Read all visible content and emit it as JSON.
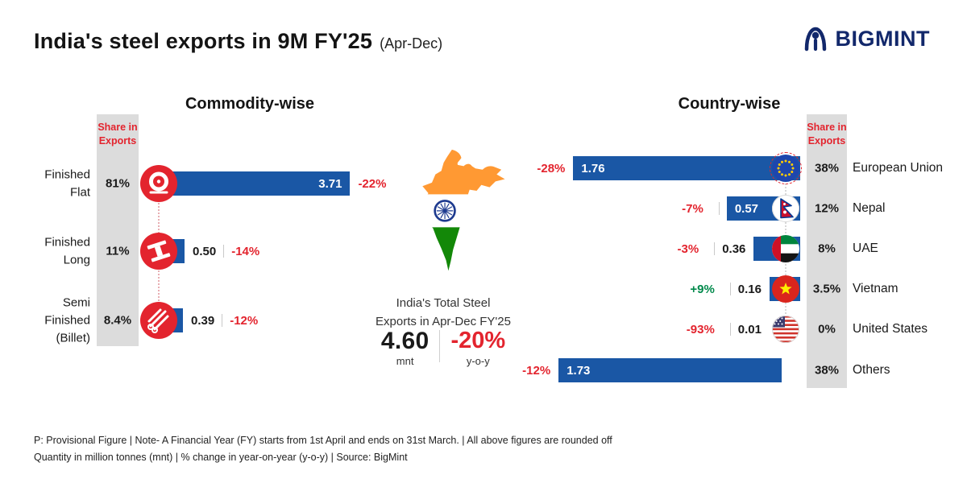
{
  "header": {
    "title": "India's steel exports in 9M FY'25",
    "subtitle": "(Apr-Dec)",
    "brand": "BIGMINT"
  },
  "colors": {
    "bar_blue": "#1a57a5",
    "accent_red": "#e3242e",
    "positive_green": "#00894b",
    "strip_gray": "#dcdcdc",
    "brand_navy": "#12286b"
  },
  "commodity": {
    "section_title": "Commodity-wise",
    "share_header": "Share in\nExports",
    "rows": [
      {
        "label": "Finished\nFlat",
        "share": "81%",
        "value": "3.71",
        "value_num": 3.71,
        "change": "-22%",
        "icon": "coil-icon"
      },
      {
        "label": "Finished\nLong",
        "share": "11%",
        "value": "0.50",
        "value_num": 0.5,
        "change": "-14%",
        "icon": "long-steel-icon"
      },
      {
        "label": "Semi\nFinished\n(Billet)",
        "share": "8.4%",
        "value": "0.39",
        "value_num": 0.39,
        "change": "-12%",
        "icon": "billet-icon"
      }
    ]
  },
  "center": {
    "caption": "India's Total Steel\nExports in Apr-Dec FY'25",
    "total_value": "4.60",
    "total_unit": "mnt",
    "total_change": "-20%",
    "change_unit": "y-o-y"
  },
  "country": {
    "section_title": "Country-wise",
    "share_header": "Share in\nExports",
    "rows": [
      {
        "name": "European Union",
        "share": "38%",
        "value": "1.76",
        "value_num": 1.76,
        "change": "-28%",
        "flag": "eu-flag"
      },
      {
        "name": "Nepal",
        "share": "12%",
        "value": "0.57",
        "value_num": 0.57,
        "change": "-7%",
        "flag": "nepal-flag"
      },
      {
        "name": "UAE",
        "share": "8%",
        "value": "0.36",
        "value_num": 0.36,
        "change": "-3%",
        "flag": "uae-flag"
      },
      {
        "name": "Vietnam",
        "share": "3.5%",
        "value": "0.16",
        "value_num": 0.16,
        "change": "+9%",
        "flag": "vietnam-flag"
      },
      {
        "name": "United States",
        "share": "0%",
        "value": "0.01",
        "value_num": 0.01,
        "change": "-93%",
        "flag": "us-flag"
      },
      {
        "name": "Others",
        "share": "38%",
        "value": "1.73",
        "value_num": 1.73,
        "change": "-12%",
        "flag": null
      }
    ]
  },
  "footer": {
    "line1": "P: Provisional Figure  |  Note- A Financial Year (FY) starts from 1st April and ends on 31st March.  |  All above figures are rounded off",
    "line2": "Quantity in million tonnes (mnt)  |  % change in year-on-year (y-o-y)  |  Source: BigMint"
  },
  "chart_data": [
    {
      "type": "bar",
      "orientation": "horizontal",
      "title": "Commodity-wise",
      "categories": [
        "Finished Flat",
        "Finished Long",
        "Semi Finished (Billet)"
      ],
      "series": [
        {
          "name": "Exports (mnt)",
          "values": [
            3.71,
            0.5,
            0.39
          ]
        },
        {
          "name": "Share in Exports (%)",
          "values": [
            81,
            11,
            8.4
          ]
        },
        {
          "name": "y-o-y change (%)",
          "values": [
            -22,
            -14,
            -12
          ]
        }
      ],
      "unit": "mnt",
      "legend": false
    },
    {
      "type": "bar",
      "orientation": "horizontal",
      "title": "Country-wise",
      "categories": [
        "European Union",
        "Nepal",
        "UAE",
        "Vietnam",
        "United States",
        "Others"
      ],
      "series": [
        {
          "name": "Exports (mnt)",
          "values": [
            1.76,
            0.57,
            0.36,
            0.16,
            0.01,
            1.73
          ]
        },
        {
          "name": "Share in Exports (%)",
          "values": [
            38,
            12,
            8,
            3.5,
            0,
            38
          ]
        },
        {
          "name": "y-o-y change (%)",
          "values": [
            -28,
            -7,
            -3,
            9,
            -93,
            -12
          ]
        }
      ],
      "unit": "mnt",
      "legend": false
    },
    {
      "type": "kpi",
      "title": "India's Total Steel Exports in Apr-Dec FY'25",
      "value": 4.6,
      "unit": "mnt",
      "yoy_change_pct": -20
    }
  ]
}
